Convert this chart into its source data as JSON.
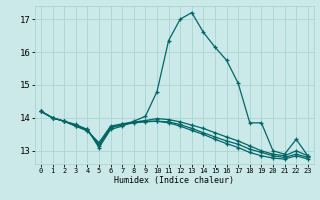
{
  "xlabel": "Humidex (Indice chaleur)",
  "xlim": [
    -0.5,
    23.5
  ],
  "ylim": [
    12.6,
    17.4
  ],
  "yticks": [
    13,
    14,
    15,
    16,
    17
  ],
  "xticks": [
    0,
    1,
    2,
    3,
    4,
    5,
    6,
    7,
    8,
    9,
    10,
    11,
    12,
    13,
    14,
    15,
    16,
    17,
    18,
    19,
    20,
    21,
    22,
    23
  ],
  "bg_color": "#cce9e9",
  "grid_color": "#aad4d4",
  "line_color": "#006666",
  "line_width": 0.9,
  "marker": "+",
  "marker_size": 3.5,
  "lines": [
    [
      14.2,
      14.0,
      13.9,
      13.75,
      13.65,
      13.1,
      13.65,
      13.75,
      13.9,
      14.05,
      14.8,
      16.35,
      17.0,
      17.2,
      16.6,
      16.15,
      15.75,
      15.05,
      13.85,
      13.85,
      13.0,
      12.9,
      13.35,
      12.85
    ],
    [
      14.2,
      14.0,
      13.9,
      13.8,
      13.65,
      13.15,
      13.7,
      13.8,
      13.87,
      13.92,
      13.98,
      13.95,
      13.88,
      13.78,
      13.68,
      13.55,
      13.42,
      13.3,
      13.15,
      13.0,
      12.9,
      12.85,
      13.0,
      12.85
    ],
    [
      14.2,
      14.0,
      13.9,
      13.78,
      13.62,
      13.2,
      13.72,
      13.78,
      13.85,
      13.88,
      13.9,
      13.88,
      13.8,
      13.68,
      13.55,
      13.42,
      13.3,
      13.2,
      13.05,
      12.95,
      12.85,
      12.8,
      12.9,
      12.8
    ],
    [
      14.2,
      14.0,
      13.9,
      13.75,
      13.6,
      13.25,
      13.75,
      13.82,
      13.88,
      13.9,
      13.9,
      13.85,
      13.75,
      13.62,
      13.5,
      13.35,
      13.22,
      13.1,
      12.95,
      12.85,
      12.78,
      12.75,
      12.85,
      12.75
    ]
  ]
}
